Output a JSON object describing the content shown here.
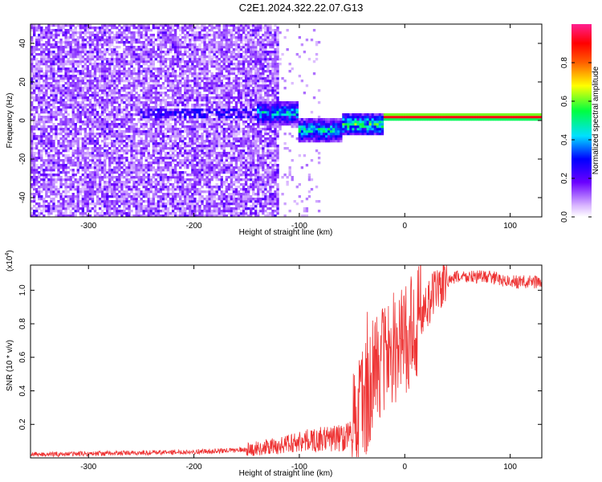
{
  "title": "C2E1.2024.322.22.07.G13",
  "chart_data": [
    {
      "type": "heatmap",
      "xlabel": "Height of straight line (km)",
      "ylabel": "Frequency (Hz)",
      "xlim": [
        -355,
        130
      ],
      "ylim": [
        -50,
        50
      ],
      "x_ticks": [
        -300,
        -200,
        -100,
        0,
        100
      ],
      "y_ticks": [
        -40,
        -20,
        0,
        20,
        40
      ],
      "colorbar": {
        "label": "Normalized spectral amplitude",
        "range": [
          0,
          1
        ],
        "ticks": [
          0.0,
          0.2,
          0.4,
          0.6,
          0.8
        ],
        "tick_labels": [
          "0.0",
          "0.2",
          "0.4",
          "0.6",
          "0.8"
        ]
      },
      "features": {
        "noise_region_x": [
          -355,
          -120
        ],
        "band_center_hz": 2,
        "band_segments": [
          {
            "x": [
              -140,
              -100
            ],
            "f": 4,
            "amp": 0.5
          },
          {
            "x": [
              -100,
              -60
            ],
            "f": -5,
            "amp": 0.55
          },
          {
            "x": [
              -60,
              -20
            ],
            "f": -2,
            "amp": 0.6
          },
          {
            "x": [
              -20,
              130
            ],
            "f": 2,
            "amp": 0.95
          }
        ]
      }
    },
    {
      "type": "line",
      "xlabel": "Height of straight line (km)",
      "ylabel": "SNR (10 * v/v)",
      "scale_label": "(x10",
      "scale_exp": "4",
      "xlim": [
        -355,
        130
      ],
      "ylim": [
        0,
        1.15
      ],
      "x_ticks": [
        -300,
        -200,
        -100,
        0,
        100
      ],
      "y_ticks": [
        0.2,
        0.4,
        0.6,
        0.8,
        1.0
      ],
      "y_tick_labels": [
        "0.2",
        "0.4",
        "0.6",
        "0.8",
        "1.0"
      ],
      "color": "#ee3333",
      "series_profile": {
        "x": [
          -355,
          -250,
          -180,
          -150,
          -120,
          -100,
          -80,
          -60,
          -50,
          -40,
          -30,
          -20,
          -10,
          0,
          10,
          20,
          30,
          40,
          50,
          80,
          100,
          130
        ],
        "y": [
          0.02,
          0.03,
          0.04,
          0.05,
          0.07,
          0.1,
          0.11,
          0.12,
          0.15,
          0.3,
          0.5,
          0.6,
          0.65,
          0.7,
          0.8,
          0.9,
          1.0,
          1.05,
          1.08,
          1.08,
          1.05,
          1.05
        ]
      }
    }
  ],
  "colors": {
    "line": "#ee3333"
  }
}
